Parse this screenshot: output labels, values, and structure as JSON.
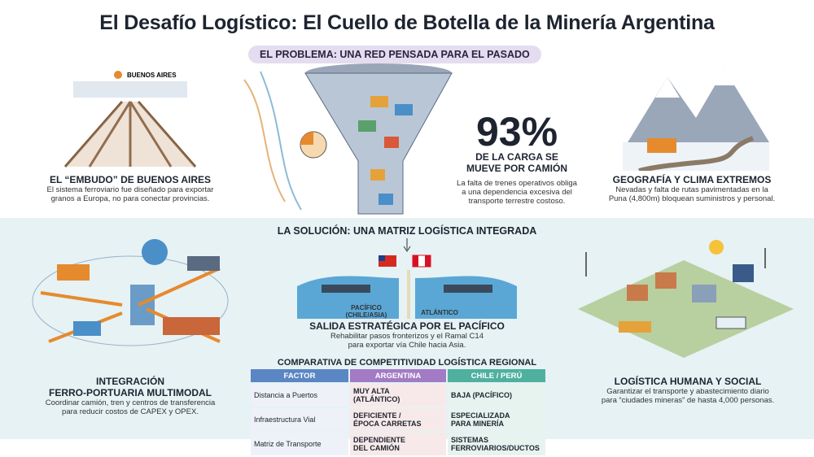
{
  "title": "El Desafío Logístico: El Cuello de Botella de la Minería Argentina",
  "problem": {
    "banner": "EL PROBLEMA: UNA RED PENSADA PARA EL PASADO",
    "funnel": {
      "city": "BUENOS AIRES",
      "heading": "EL “EMBUDO” DE BUENOS AIRES",
      "text": [
        "El sistema ferroviario fue diseñado para exportar",
        "granos a Europa, no para conectar provincias."
      ]
    },
    "stat": {
      "number": "93%",
      "heading": [
        "DE LA CARGA SE",
        "MUEVE POR CAMIÓN"
      ],
      "text": [
        "La falta de trenes operativos obliga",
        "a una dependencia excesiva del",
        "transporte terrestre costoso."
      ]
    },
    "geography": {
      "heading": "GEOGRAFÍA Y CLIMA EXTREMOS",
      "text": [
        "Nevadas y falta de rutas pavimentadas en la",
        "Puna (4,800m) bloquean suministros y personal."
      ]
    }
  },
  "solution": {
    "banner": "LA SOLUCIÓN: UNA MATRIZ LOGÍSTICA INTEGRADA",
    "multimodal": {
      "heading": [
        "INTEGRACIÓN",
        "FERRO-PORTUARIA MULTIMODAL"
      ],
      "text": [
        "Coordinar camión, tren y centros de transferencia",
        "para reducir costos de CAPEX y OPEX."
      ]
    },
    "ports": {
      "pacific": [
        "PACÍFICO",
        "(CHILE/ASIA)"
      ],
      "atlantic": "ATLÁNTICO",
      "heading": "SALIDA ESTRATÉGICA POR EL PACÍFICO",
      "text": [
        "Rehabilitar pasos fronterizos y el Ramal C14",
        "para exportar vía Chile hacia Asia."
      ]
    },
    "social": {
      "heading": "LOGÍSTICA HUMANA Y SOCIAL",
      "text": [
        "Garantizar el transporte y abastecimiento diario",
        "para “ciudades mineras” de hasta 4,000 personas."
      ]
    }
  },
  "table": {
    "title": "COMPARATIVA DE COMPETITIVIDAD LOGÍSTICA REGIONAL",
    "header": [
      "FACTOR",
      "ARGENTINA",
      "CHILE / PERÚ"
    ],
    "rows": [
      [
        "Distancia a Puertos",
        [
          "MUY ALTA",
          "(ATLÁNTICO)"
        ],
        [
          "BAJA (PACÍFICO)"
        ]
      ],
      [
        "Infraestructura Vial",
        [
          "DEFICIENTE /",
          "ÉPOCA CARRETAS"
        ],
        [
          "ESPECIALIZADA",
          "PARA MINERÍA"
        ]
      ],
      [
        "Matriz de Transporte",
        [
          "DEPENDIENTE",
          "DEL CAMIÓN"
        ],
        [
          "SISTEMAS",
          "FERROVIARIOS/DUCTOS"
        ]
      ]
    ]
  }
}
